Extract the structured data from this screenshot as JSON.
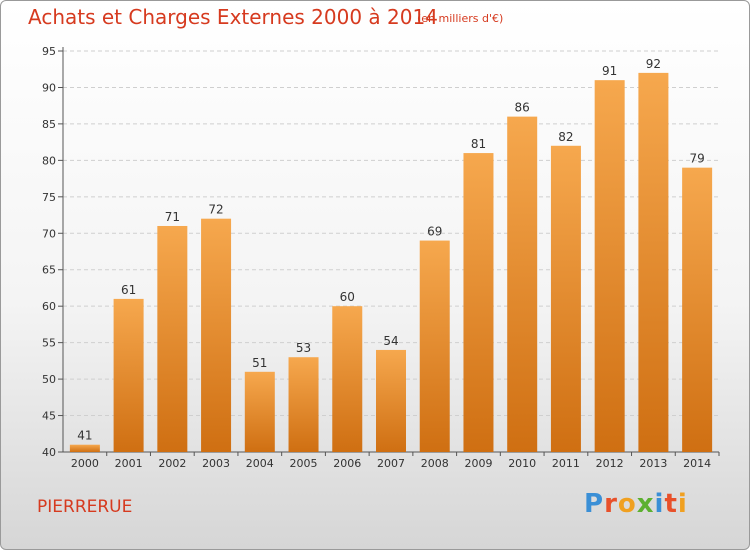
{
  "title": "Achats et Charges Externes 2000 à 2014",
  "subtitle": "(en milliers d'€)",
  "commune": "PIERRERUE",
  "logo": "Proxiti",
  "colors": {
    "bar_light": "#f6a84e",
    "bar_dark": "#cf6f12",
    "title": "#d63a1f",
    "grid": "#cfcfcf"
  },
  "chart_data": {
    "type": "bar",
    "categories": [
      "2000",
      "2001",
      "2002",
      "2003",
      "2004",
      "2005",
      "2006",
      "2007",
      "2008",
      "2009",
      "2010",
      "2011",
      "2012",
      "2013",
      "2014"
    ],
    "values": [
      41,
      61,
      71,
      72,
      51,
      53,
      60,
      54,
      69,
      81,
      86,
      82,
      91,
      92,
      79
    ],
    "ylim": [
      40,
      95
    ],
    "yticks": [
      40,
      45,
      50,
      55,
      60,
      65,
      70,
      75,
      80,
      85,
      90,
      95
    ],
    "grid": true,
    "grid_style": "dashed horizontal"
  }
}
